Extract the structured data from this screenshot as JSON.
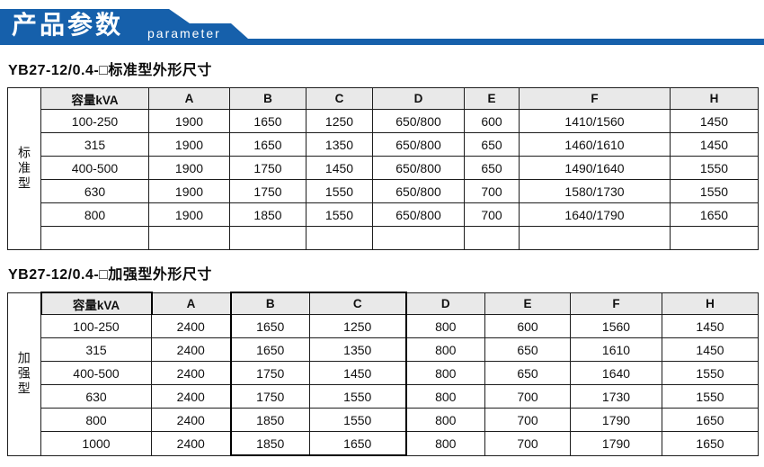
{
  "banner": {
    "title": "产品参数",
    "subtitle": "parameter",
    "accent_color": "#1660ab"
  },
  "tables": [
    {
      "title": "YB27-12/0.4-□标准型外形尺寸",
      "side_label": "标准型",
      "columns": [
        "容量kVA",
        "A",
        "B",
        "C",
        "D",
        "E",
        "F",
        "H"
      ],
      "rows": [
        [
          "100-250",
          "1900",
          "1650",
          "1250",
          "650/800",
          "600",
          "1410/1560",
          "1450"
        ],
        [
          "315",
          "1900",
          "1650",
          "1350",
          "650/800",
          "650",
          "1460/1610",
          "1450"
        ],
        [
          "400-500",
          "1900",
          "1750",
          "1450",
          "650/800",
          "650",
          "1490/1640",
          "1550"
        ],
        [
          "630",
          "1900",
          "1750",
          "1550",
          "650/800",
          "700",
          "1580/1730",
          "1550"
        ],
        [
          "800",
          "1900",
          "1850",
          "1550",
          "650/800",
          "700",
          "1640/1790",
          "1650"
        ],
        [
          "",
          "",
          "",
          "",
          "",
          "",
          "",
          ""
        ]
      ]
    },
    {
      "title": "YB27-12/0.4-□加强型外形尺寸",
      "side_label": "加强型",
      "columns": [
        "容量kVA",
        "A",
        "B",
        "C",
        "D",
        "E",
        "F",
        "H"
      ],
      "rows": [
        [
          "100-250",
          "2400",
          "1650",
          "1250",
          "800",
          "600",
          "1560",
          "1450"
        ],
        [
          "315",
          "2400",
          "1650",
          "1350",
          "800",
          "650",
          "1610",
          "1450"
        ],
        [
          "400-500",
          "2400",
          "1750",
          "1450",
          "800",
          "650",
          "1640",
          "1550"
        ],
        [
          "630",
          "2400",
          "1750",
          "1550",
          "800",
          "700",
          "1730",
          "1550"
        ],
        [
          "800",
          "2400",
          "1850",
          "1550",
          "800",
          "700",
          "1790",
          "1650"
        ],
        [
          "1000",
          "2400",
          "1850",
          "1650",
          "800",
          "700",
          "1790",
          "1650"
        ]
      ]
    }
  ]
}
